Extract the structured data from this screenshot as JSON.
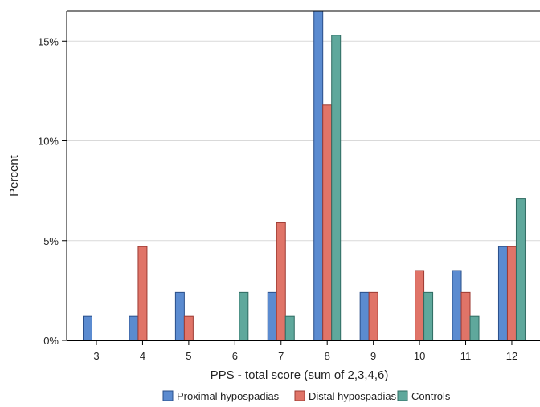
{
  "chart_data": {
    "type": "bar",
    "title": "",
    "xlabel": "PPS - total score (sum of 2,3,4,6)",
    "ylabel": "Percent",
    "categories": [
      "3",
      "4",
      "5",
      "6",
      "7",
      "8",
      "9",
      "10",
      "11",
      "12"
    ],
    "ylim": [
      0,
      16.5
    ],
    "yticks": [
      0,
      5,
      10,
      15
    ],
    "ytick_labels": [
      "0%",
      "5%",
      "10%",
      "15%"
    ],
    "grid": "horizontal",
    "legend_position": "bottom",
    "series": [
      {
        "name": "Proximal hypospadias",
        "color": "#5b8bd0",
        "stroke": "#2a4f8a",
        "values": [
          1.2,
          1.2,
          2.4,
          0,
          2.4,
          16.5,
          2.4,
          0,
          3.5,
          4.7
        ]
      },
      {
        "name": "Distal hypospadias",
        "color": "#e07468",
        "stroke": "#9c3a32",
        "values": [
          0,
          4.7,
          1.2,
          0,
          5.9,
          11.8,
          2.4,
          3.5,
          2.4,
          4.7
        ]
      },
      {
        "name": "Controls",
        "color": "#5fa89c",
        "stroke": "#2f6b62",
        "values": [
          0,
          0,
          0,
          2.4,
          1.2,
          15.3,
          0,
          2.4,
          1.2,
          7.1
        ]
      }
    ]
  }
}
